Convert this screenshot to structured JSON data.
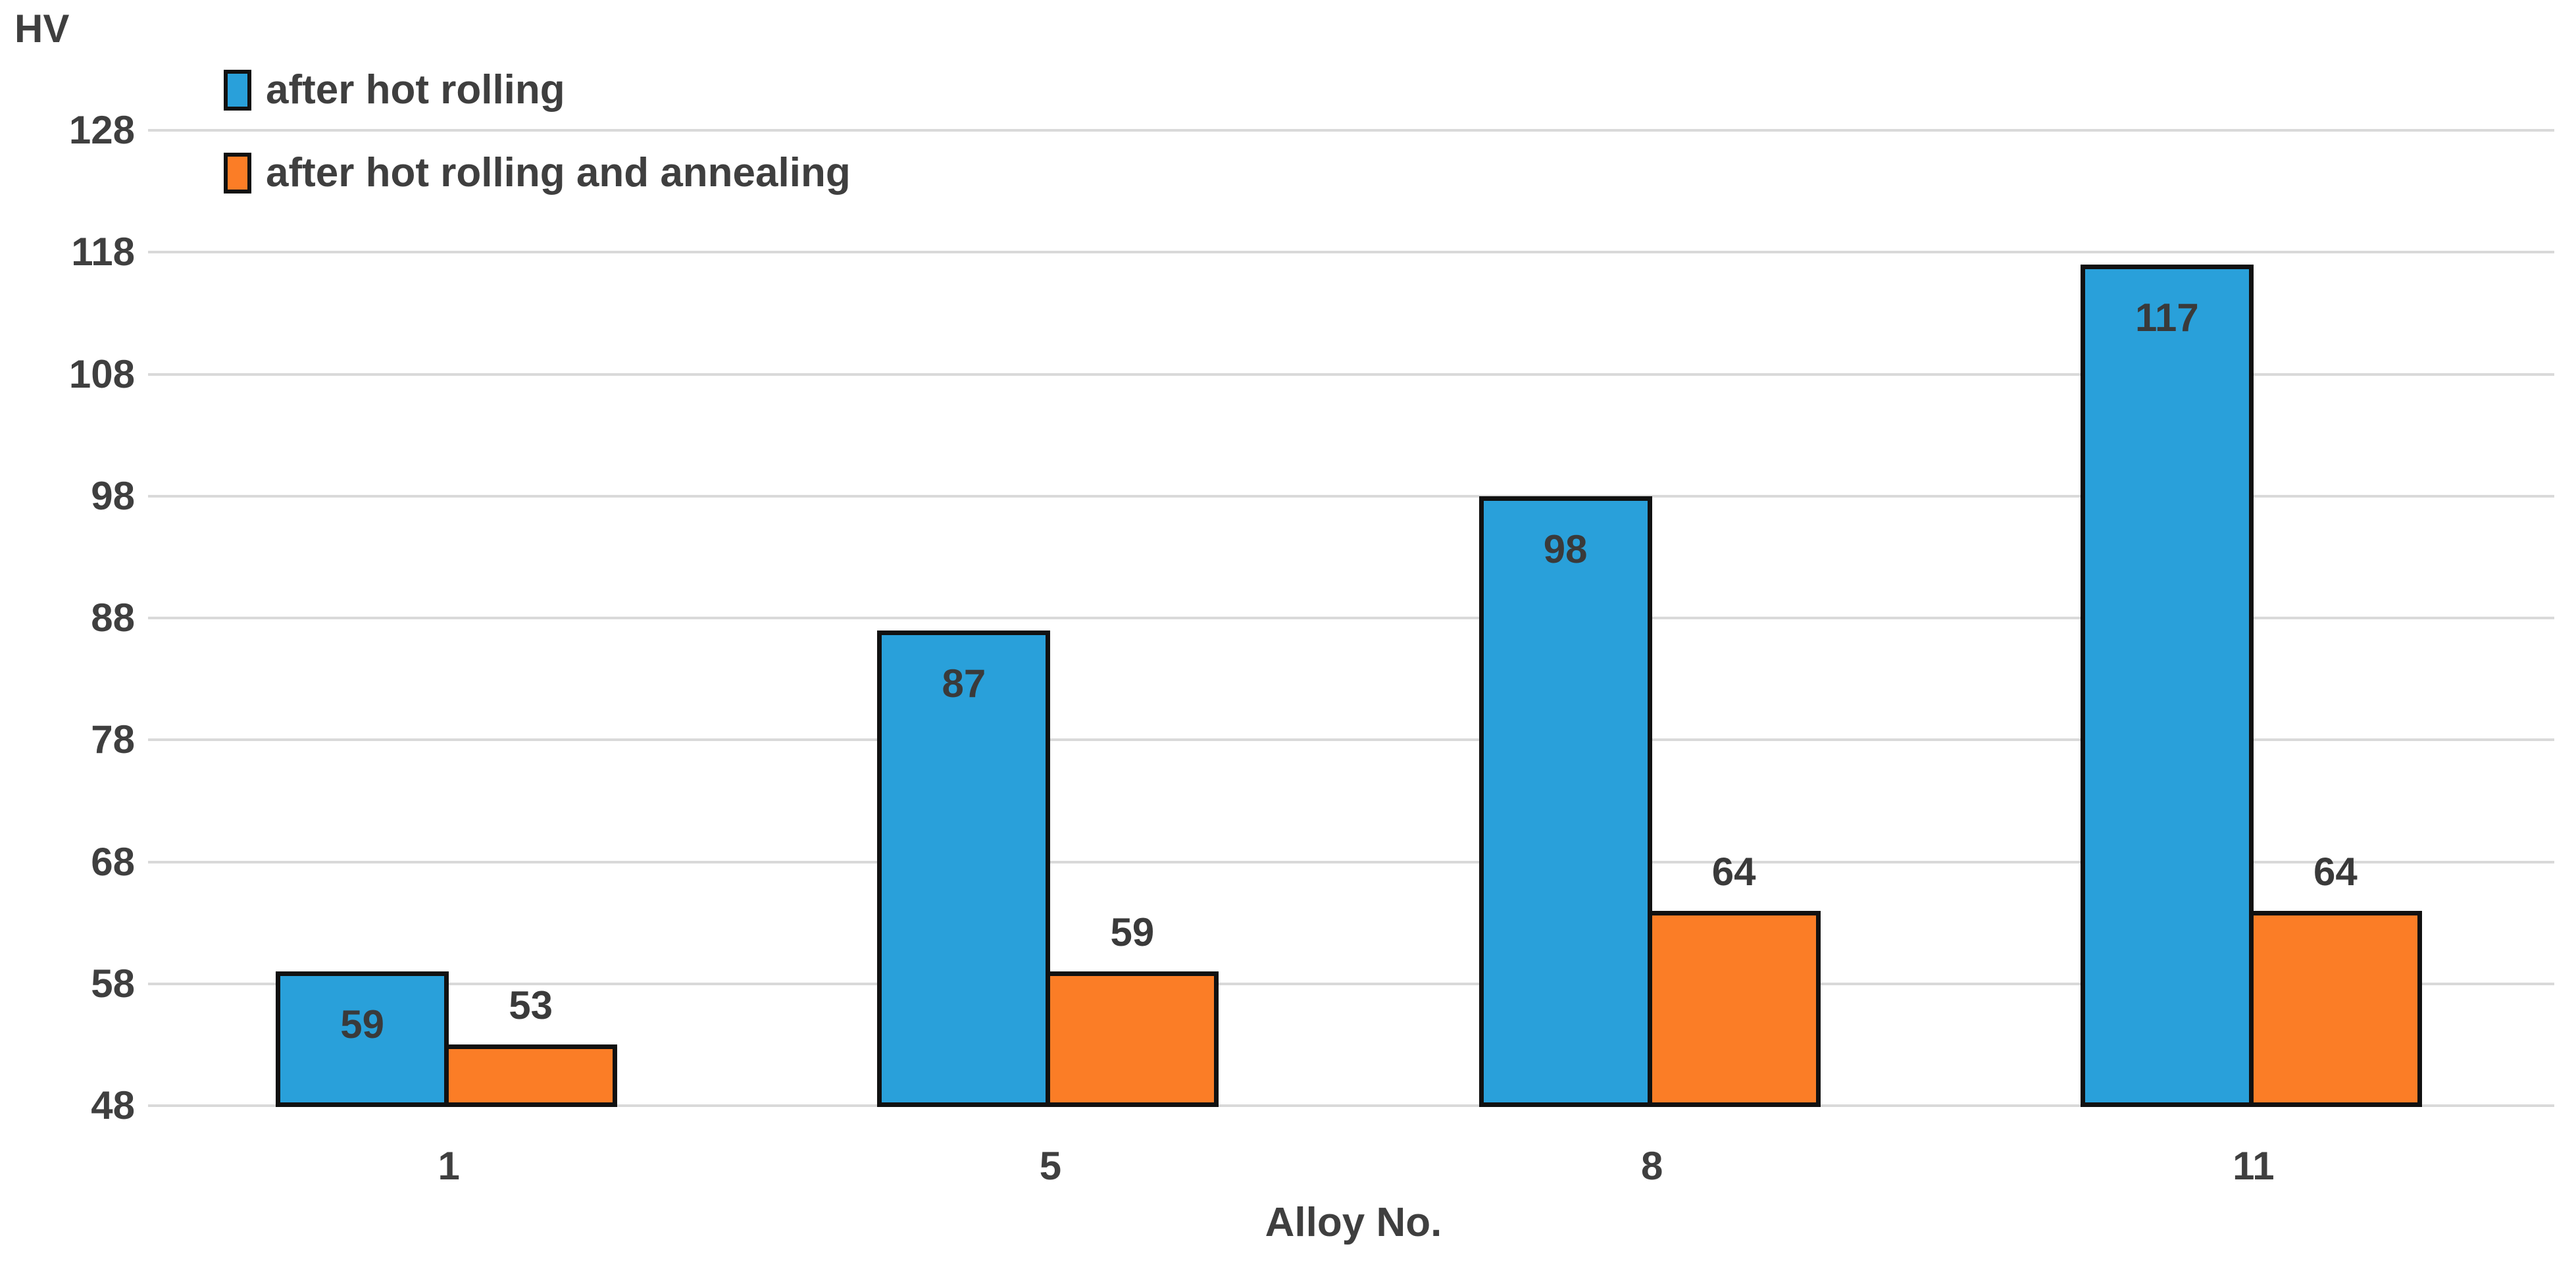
{
  "chart_data": {
    "type": "bar",
    "title": "",
    "xlabel": "Alloy No.",
    "ylabel": "HV",
    "categories": [
      "1",
      "5",
      "8",
      "11"
    ],
    "series": [
      {
        "name": "after hot rolling",
        "color": "#29a0da",
        "values": [
          59,
          87,
          98,
          117
        ],
        "label_position": "inside-top"
      },
      {
        "name": "after hot rolling and annealing",
        "color": "#fb7d26",
        "values": [
          53,
          59,
          64,
          64
        ],
        "label_position": "above"
      }
    ],
    "ylim": [
      48,
      128
    ],
    "yticks": [
      48,
      58,
      68,
      78,
      88,
      98,
      108,
      118,
      128
    ],
    "grid": "horizontal",
    "gridline_color": "#d9d9d9",
    "bar_border_color": "#111111",
    "text_color": "#3f3f3f",
    "legend_position": "top-left",
    "background": "#ffffff"
  }
}
